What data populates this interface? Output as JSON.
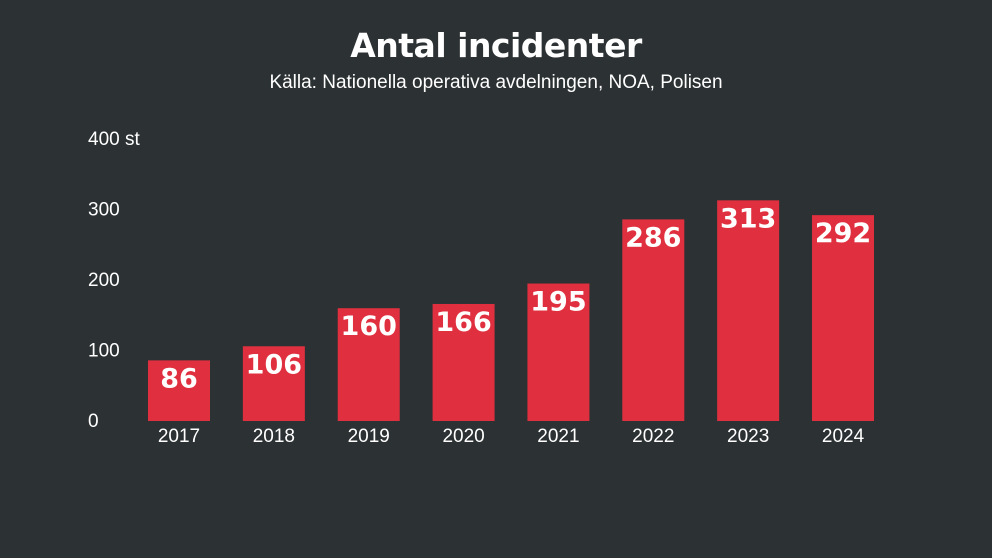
{
  "chart_data": {
    "type": "bar",
    "title": "Antal incidenter",
    "subtitle": "Källa: Nationella operativa avdelningen, NOA, Polisen",
    "categories": [
      "2017",
      "2018",
      "2019",
      "2020",
      "2021",
      "2022",
      "2023",
      "2024"
    ],
    "values": [
      86,
      106,
      160,
      166,
      195,
      286,
      313,
      292
    ],
    "ylim": [
      0,
      400
    ],
    "yticks": [
      0,
      100,
      200,
      300,
      400
    ],
    "ytick_labels": [
      "0",
      "100",
      "200",
      "300",
      "400 st"
    ],
    "data_labels": true,
    "grid": false,
    "bar_color": "#e0303f"
  },
  "colors": {
    "background": "#2c3133",
    "text": "#ffffff",
    "bar": "#e0303f"
  }
}
